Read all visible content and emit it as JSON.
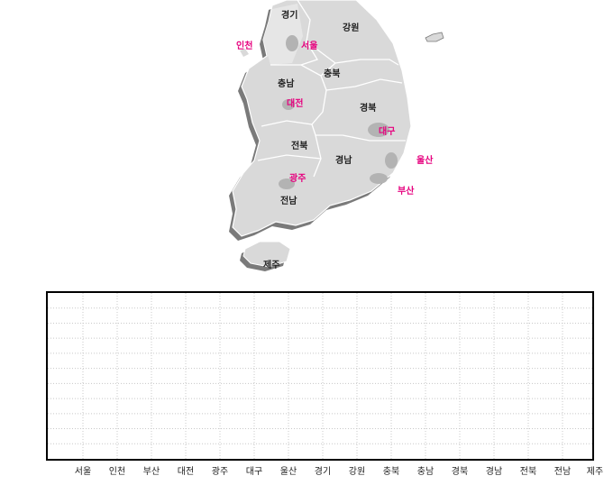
{
  "map": {
    "labels": {
      "gyeonggi": "경기",
      "gangwon": "강원",
      "incheon": "인천",
      "seoul": "서울",
      "chungbuk": "충북",
      "chungnam": "충남",
      "daejeon": "대전",
      "gyeongbuk": "경북",
      "daegu": "대구",
      "jeonbuk": "전북",
      "gyeongnam": "경남",
      "ulsan": "울산",
      "gwangju": "광주",
      "busan": "부산",
      "jeonnam": "전남",
      "jeju": "제주"
    },
    "colors": {
      "land": "#d9d9d9",
      "land_highlight": "#ececec",
      "shadow": "#7a7a7a",
      "metro_area": "#b3b3b3",
      "border": "#ffffff",
      "province_text": "#222222",
      "metro_text": "#e6007e"
    }
  },
  "chart_data": {
    "type": "bar",
    "categories": [
      "서울",
      "인천",
      "부산",
      "대전",
      "광주",
      "대구",
      "울산",
      "경기",
      "강원",
      "충북",
      "충남",
      "경북",
      "경남",
      "전북",
      "전남",
      "제주"
    ],
    "series": [],
    "grid": true,
    "grid_style": "dotted",
    "colors": {
      "frame": "#000000",
      "grid": "#c8c8c8"
    }
  }
}
